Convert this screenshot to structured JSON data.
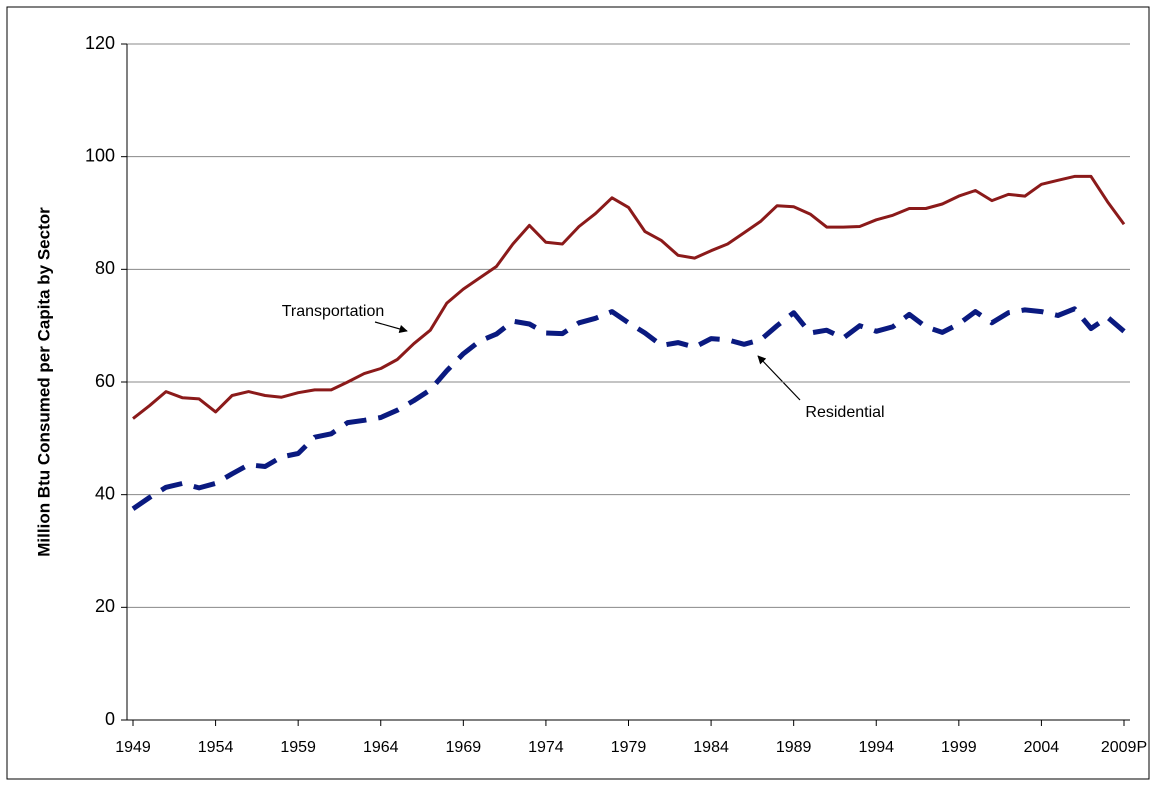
{
  "chart_data": {
    "type": "line",
    "y_label": "Million Btu Consumed per Capita by Sector",
    "categories": [
      "1949",
      null,
      null,
      null,
      null,
      "1954",
      null,
      null,
      null,
      null,
      "1959",
      null,
      null,
      null,
      null,
      "1964",
      null,
      null,
      null,
      null,
      "1969",
      null,
      null,
      null,
      null,
      "1974",
      null,
      null,
      null,
      null,
      "1979",
      null,
      null,
      null,
      null,
      "1984",
      null,
      null,
      null,
      null,
      "1989",
      null,
      null,
      null,
      null,
      "1994",
      null,
      null,
      null,
      null,
      "1999",
      null,
      null,
      null,
      null,
      "2004",
      null,
      null,
      null,
      null,
      "2009P"
    ],
    "series": [
      {
        "name": "Transportation",
        "color": "#8b1a1a",
        "style": "solid",
        "values": [
          53.5,
          55.8,
          58.3,
          57.2,
          57.0,
          54.7,
          57.6,
          58.3,
          57.6,
          57.3,
          58.1,
          58.6,
          58.6,
          60.0,
          61.5,
          62.4,
          64.0,
          66.8,
          69.2,
          74.0,
          76.5,
          78.5,
          80.5,
          84.5,
          87.8,
          84.8,
          84.5,
          87.6,
          89.9,
          92.7,
          91.0,
          86.7,
          85.1,
          82.5,
          82.0,
          83.3,
          84.5,
          86.5,
          88.5,
          91.3,
          91.1,
          89.8,
          87.5,
          87.5,
          87.6,
          88.8,
          89.6,
          90.8,
          90.8,
          91.6,
          93.0,
          94.0,
          92.2,
          93.3,
          93.0,
          95.1,
          95.8,
          96.5,
          96.5,
          92.0,
          88.0
        ]
      },
      {
        "name": "Residential",
        "color": "#0a1a80",
        "style": "dashed",
        "values": [
          37.5,
          39.5,
          41.3,
          42.0,
          41.2,
          42.0,
          43.7,
          45.3,
          45.0,
          46.7,
          47.3,
          50.2,
          50.8,
          52.8,
          53.2,
          53.7,
          55.0,
          56.7,
          58.6,
          62.0,
          65.0,
          67.3,
          68.5,
          70.8,
          70.3,
          68.7,
          68.6,
          70.5,
          71.3,
          72.5,
          70.5,
          68.7,
          66.5,
          67.0,
          66.2,
          67.7,
          67.5,
          66.7,
          67.5,
          70.0,
          72.3,
          68.7,
          69.2,
          67.8,
          70.0,
          69.0,
          69.8,
          72.0,
          69.8,
          68.8,
          70.3,
          72.5,
          70.5,
          72.3,
          72.8,
          72.5,
          71.8,
          73.0,
          69.5,
          71.5,
          69.0
        ]
      }
    ],
    "annotations": [
      {
        "text": "Transportation"
      },
      {
        "text": "Residential"
      }
    ],
    "ylim": [
      0,
      120
    ],
    "yticks": [
      0,
      20,
      40,
      60,
      80,
      100,
      120
    ],
    "grid": true
  }
}
